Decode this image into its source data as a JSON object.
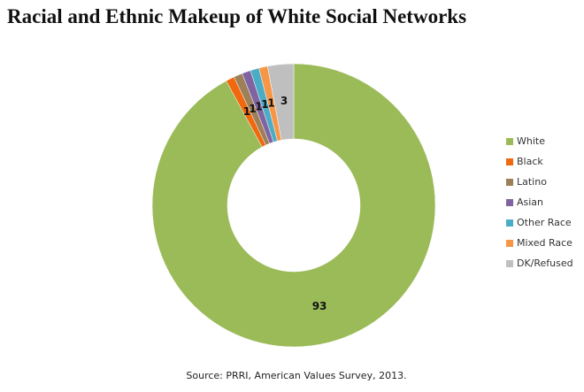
{
  "chart_data": {
    "type": "donut",
    "title": "Racial and Ethnic Makeup of White Social Networks",
    "categories": [
      "White",
      "Black",
      "Latino",
      "Asian",
      "Other Race",
      "Mixed Race",
      "DK/Refused"
    ],
    "values": [
      93,
      1,
      1,
      1,
      1,
      1,
      3
    ],
    "colors": [
      "#9bbb59",
      "#f0690f",
      "#9c8059",
      "#8064a2",
      "#4bacc6",
      "#f79646",
      "#bfbfbf"
    ],
    "source": "Source: PRRI, American Values Survey, 2013."
  }
}
